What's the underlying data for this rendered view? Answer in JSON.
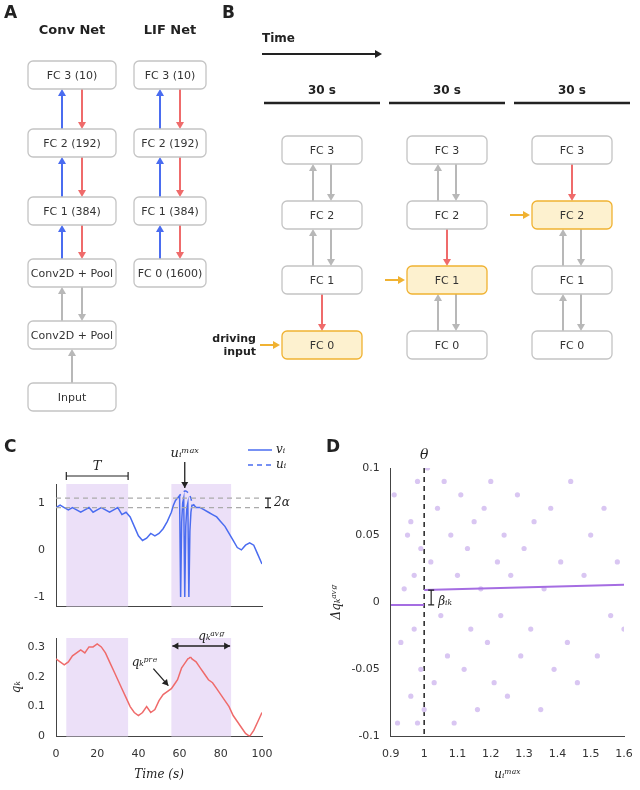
{
  "figure": {
    "A": {
      "label": "A",
      "networks": [
        {
          "title": "Conv Net",
          "layers": [
            "Input",
            "Conv2D + Pool",
            "Conv2D + Pool",
            "FC 1 (384)",
            "FC 2 (192)",
            "FC 3 (10)"
          ],
          "links": [
            {
              "up": "#b8b8b8",
              "down": null
            },
            {
              "up": "#b8b8b8",
              "down": "#b8b8b8"
            },
            {
              "up": "#4a6cf0",
              "down": "#ef6b6b"
            },
            {
              "up": "#4a6cf0",
              "down": "#ef6b6b"
            },
            {
              "up": "#4a6cf0",
              "down": "#ef6b6b"
            }
          ]
        },
        {
          "title": "LIF Net",
          "layers": [
            "FC 0 (1600)",
            "FC 1 (384)",
            "FC 2 (192)",
            "FC 3 (10)"
          ],
          "links": [
            {
              "up": "#4a6cf0",
              "down": "#ef6b6b"
            },
            {
              "up": "#4a6cf0",
              "down": "#ef6b6b"
            },
            {
              "up": "#4a6cf0",
              "down": "#ef6b6b"
            }
          ]
        }
      ]
    },
    "B": {
      "label": "B",
      "time_label": "Time",
      "layers": [
        "FC 0",
        "FC 1",
        "FC 2",
        "FC 3"
      ],
      "driving_label": "driving input",
      "columns": [
        {
          "duration": "30 s",
          "driven": "FC 0"
        },
        {
          "duration": "30 s",
          "driven": "FC 1"
        },
        {
          "duration": "30 s",
          "driven": "FC 2"
        }
      ]
    },
    "C": {
      "label": "C"
    },
    "D": {
      "label": "D"
    }
  },
  "chart_data": [
    {
      "type": "line",
      "x": [
        0,
        2,
        4,
        6,
        8,
        10,
        12,
        14,
        16,
        18,
        20,
        22,
        24,
        26,
        28,
        30,
        32,
        34,
        36,
        38,
        40,
        42,
        44,
        46,
        48,
        50,
        52,
        54,
        56,
        57,
        58,
        59,
        60,
        60.5,
        61,
        61.5,
        62,
        62.5,
        63,
        63.5,
        64,
        64.5,
        65,
        65.5,
        66,
        67,
        68,
        70,
        72,
        74,
        76,
        78,
        80,
        82,
        84,
        86,
        88,
        90,
        92,
        94,
        96,
        98,
        100
      ],
      "xlim": [
        0,
        100
      ],
      "ylim": [
        -1.2,
        1.4
      ],
      "yticks": [
        -1,
        0,
        1
      ],
      "tick_labels": "y",
      "grid": false,
      "legend": "top right",
      "series": [
        {
          "name": "vᵢ",
          "color": "#4a6cf0",
          "line_style": "solid",
          "values": [
            0.9,
            0.95,
            0.9,
            0.85,
            0.9,
            0.85,
            0.8,
            0.85,
            0.9,
            0.8,
            0.85,
            0.9,
            0.85,
            0.8,
            0.85,
            0.9,
            0.75,
            0.8,
            0.7,
            0.5,
            0.3,
            0.2,
            0.25,
            0.35,
            0.3,
            0.35,
            0.45,
            0.6,
            0.8,
            0.95,
            1.05,
            1.1,
            1.15,
            -1.0,
            0.6,
            1.0,
            1.1,
            -1.0,
            0.5,
            0.9,
            1.0,
            -1.0,
            0.4,
            0.8,
            0.95,
            0.95,
            0.9,
            0.9,
            0.85,
            0.8,
            0.75,
            0.7,
            0.6,
            0.5,
            0.35,
            0.2,
            0.05,
            0.0,
            0.1,
            0.15,
            0.1,
            -0.1,
            -0.3
          ]
        },
        {
          "name": "uᵢ",
          "color": "#4a6cf0",
          "line_style": "dashed",
          "values": [
            null,
            null,
            null,
            null,
            null,
            null,
            null,
            null,
            null,
            null,
            null,
            null,
            null,
            null,
            null,
            null,
            null,
            null,
            null,
            null,
            null,
            null,
            null,
            null,
            null,
            null,
            null,
            null,
            null,
            null,
            null,
            1.1,
            1.15,
            1.18,
            1.2,
            1.22,
            1.24,
            1.25,
            1.25,
            1.24,
            1.22,
            1.2,
            1.15,
            1.1,
            1.0,
            0.95,
            null,
            null,
            null,
            null,
            null,
            null,
            null,
            null,
            null,
            null,
            null,
            null,
            null,
            null,
            null,
            null,
            null
          ]
        }
      ],
      "reference_lines": [
        0.9,
        1.1
      ],
      "reference_label": "2α",
      "shaded_regions": [
        [
          5,
          35
        ],
        [
          56,
          85
        ]
      ],
      "period_label": "T",
      "peak_label": "uᵢᵐᵃˣ"
    },
    {
      "type": "line",
      "x": [
        0,
        2,
        4,
        6,
        8,
        10,
        12,
        14,
        16,
        18,
        20,
        22,
        24,
        26,
        28,
        30,
        32,
        34,
        36,
        38,
        40,
        42,
        44,
        46,
        48,
        50,
        52,
        54,
        56,
        57,
        58,
        59,
        60,
        60.5,
        61,
        61.5,
        62,
        62.5,
        63,
        63.5,
        64,
        64.5,
        65,
        65.5,
        66,
        67,
        68,
        70,
        72,
        74,
        76,
        78,
        80,
        82,
        84,
        86,
        88,
        90,
        92,
        94,
        96,
        98,
        100
      ],
      "xlim": [
        0,
        100
      ],
      "xticks": [
        0,
        20,
        40,
        60,
        80,
        100
      ],
      "ylim": [
        0,
        0.33
      ],
      "yticks": [
        0,
        0.1,
        0.2,
        0.3
      ],
      "x_label": "Time (s)",
      "y_label": "qₖ",
      "grid": false,
      "color": "#ef6b6b",
      "values": [
        0.26,
        0.25,
        0.24,
        0.25,
        0.27,
        0.28,
        0.29,
        0.28,
        0.3,
        0.3,
        0.31,
        0.3,
        0.28,
        0.25,
        0.22,
        0.19,
        0.16,
        0.13,
        0.1,
        0.08,
        0.07,
        0.08,
        0.1,
        0.08,
        0.09,
        0.12,
        0.14,
        0.15,
        0.16,
        0.17,
        0.18,
        0.19,
        0.21,
        0.22,
        0.23,
        0.235,
        0.24,
        0.245,
        0.25,
        0.255,
        0.26,
        0.262,
        0.265,
        0.265,
        0.26,
        0.255,
        0.25,
        0.23,
        0.21,
        0.19,
        0.18,
        0.16,
        0.14,
        0.12,
        0.1,
        0.07,
        0.05,
        0.03,
        0.01,
        0.0,
        0.02,
        0.05,
        0.08
      ],
      "shaded_regions": [
        [
          5,
          35
        ],
        [
          56,
          85
        ]
      ],
      "start_label": "qₖᵖʳᵉ",
      "average_label": "qₖᵃᵛᵍ"
    },
    {
      "type": "scatter",
      "x": [
        0.91,
        0.93,
        0.95,
        0.96,
        0.97,
        0.98,
        0.99,
        0.92,
        0.94,
        0.96,
        0.97,
        0.98,
        0.99,
        1.0,
        1.01,
        1.02,
        1.03,
        1.04,
        1.05,
        1.06,
        1.07,
        1.08,
        1.09,
        1.1,
        1.11,
        1.12,
        1.13,
        1.14,
        1.15,
        1.16,
        1.17,
        1.18,
        1.19,
        1.2,
        1.21,
        1.22,
        1.23,
        1.24,
        1.25,
        1.26,
        1.28,
        1.29,
        1.3,
        1.32,
        1.33,
        1.35,
        1.36,
        1.38,
        1.39,
        1.41,
        1.43,
        1.44,
        1.46,
        1.48,
        1.5,
        1.52,
        1.54,
        1.56,
        1.58,
        1.6
      ],
      "values": [
        0.08,
        -0.03,
        0.05,
        -0.07,
        0.02,
        0.09,
        -0.05,
        -0.09,
        0.01,
        0.06,
        -0.02,
        -0.09,
        0.04,
        -0.08,
        0.1,
        0.03,
        -0.06,
        0.07,
        -0.01,
        0.09,
        -0.04,
        0.05,
        -0.09,
        0.02,
        0.08,
        -0.05,
        0.04,
        -0.02,
        0.06,
        -0.08,
        0.01,
        0.07,
        -0.03,
        0.09,
        -0.06,
        0.03,
        -0.01,
        0.05,
        -0.07,
        0.02,
        0.08,
        -0.04,
        0.04,
        -0.02,
        0.06,
        -0.08,
        0.01,
        0.07,
        -0.05,
        0.03,
        -0.03,
        0.09,
        -0.06,
        0.02,
        0.05,
        -0.04,
        0.07,
        -0.01,
        0.03,
        -0.02
      ],
      "color": "#d9c6f2",
      "marker": "circle",
      "xlim": [
        0.9,
        1.6
      ],
      "xticks": [
        0.9,
        1,
        1.1,
        1.2,
        1.3,
        1.4,
        1.5,
        1.6
      ],
      "ylim": [
        -0.1,
        0.1
      ],
      "yticks": [
        -0.1,
        -0.05,
        0,
        0.05,
        0.1
      ],
      "x_label": "uᵢᵐᵃˣ",
      "y_label": "Δqₖᵃᵛᵍ",
      "grid": false,
      "threshold": 1,
      "threshold_label": "θ",
      "fit": {
        "color": "#a56de2",
        "below": {
          "x": [
            0.9,
            1
          ],
          "values": [
            -0.002,
            -0.002
          ]
        },
        "above": {
          "x": [
            1,
            1.6
          ],
          "values": [
            0.009,
            0.013
          ]
        }
      },
      "jump_label": "βᵢₖ"
    }
  ]
}
